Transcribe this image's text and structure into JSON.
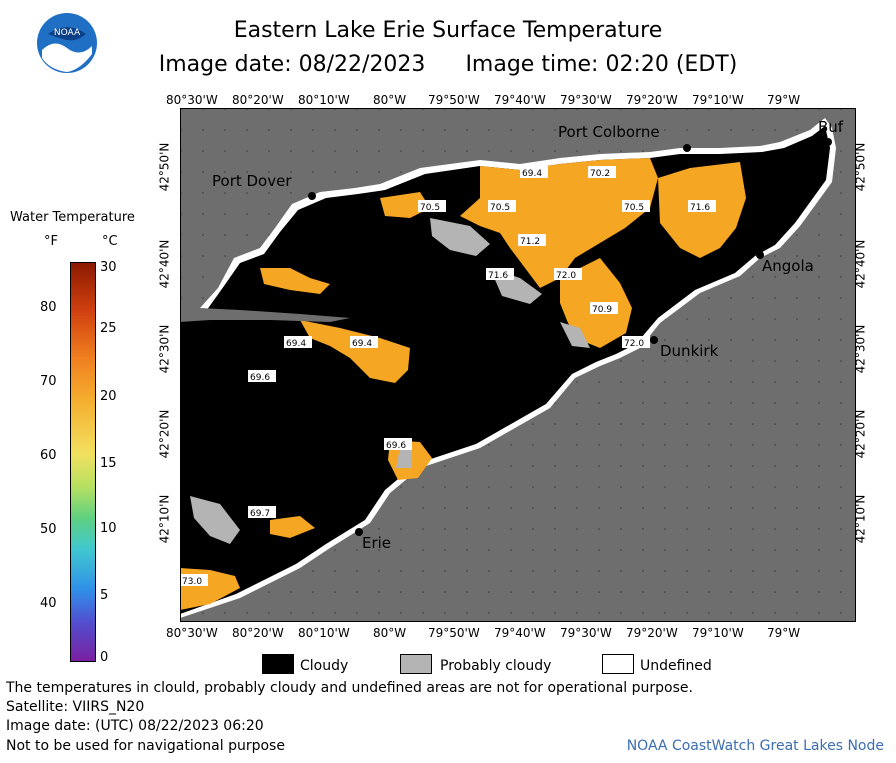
{
  "header": {
    "logo_text": "NOAA",
    "title": "Eastern Lake Erie Surface Temperature",
    "image_date": "Image date: 08/22/2023",
    "image_time": "Image time: 02:20 (EDT)"
  },
  "map": {
    "lon_labels": [
      "80°30'W",
      "80°20'W",
      "80°10'W",
      "80°W",
      "79°50'W",
      "79°40'W",
      "79°30'W",
      "79°20'W",
      "79°10'W",
      "79°W"
    ],
    "lat_labels": [
      "42°50'N",
      "42°40'N",
      "42°30'N",
      "42°20'N",
      "42°10'N"
    ],
    "places": {
      "port_colborne": "Port Colborne",
      "port_dover": "Port Dover",
      "angola": "Angola",
      "dunkirk": "Dunkirk",
      "erie": "Erie",
      "buffalo": "Buf"
    },
    "temp_labels": [
      "69.4",
      "70.2",
      "70.5",
      "70.5",
      "70.5",
      "71.6",
      "71.2",
      "71.6",
      "72.0",
      "70.9",
      "72.0",
      "69.4",
      "69.4",
      "69.6",
      "69.6",
      "69.7",
      "73.0"
    ],
    "colors": {
      "water_warm": "#f5a623",
      "cloud": "#000000",
      "probably_cloudy": "#b4b4b4",
      "land": "#6e6e6e",
      "undefined": "#ffffff"
    }
  },
  "legend": {
    "title": "Water Temperature",
    "unit_f": "°F",
    "unit_c": "°C",
    "f_ticks": [
      "80",
      "70",
      "60",
      "50",
      "40"
    ],
    "c_ticks": [
      "30",
      "25",
      "20",
      "15",
      "10",
      "5",
      "0"
    ]
  },
  "key": {
    "cloudy": "Cloudy",
    "probably_cloudy": "Probably cloudy",
    "undefined": "Undefined"
  },
  "footer": {
    "disclaimer": "The temperatures in clould, probably cloudy and undefined areas are not for operational purpose.",
    "satellite": "Satellite: VIIRS_N20",
    "utc_date": "Image date: (UTC) 08/22/2023  06:20",
    "nav_warning": "Not to be used for navigational purpose",
    "credit": "NOAA CoastWatch Great Lakes Node"
  }
}
